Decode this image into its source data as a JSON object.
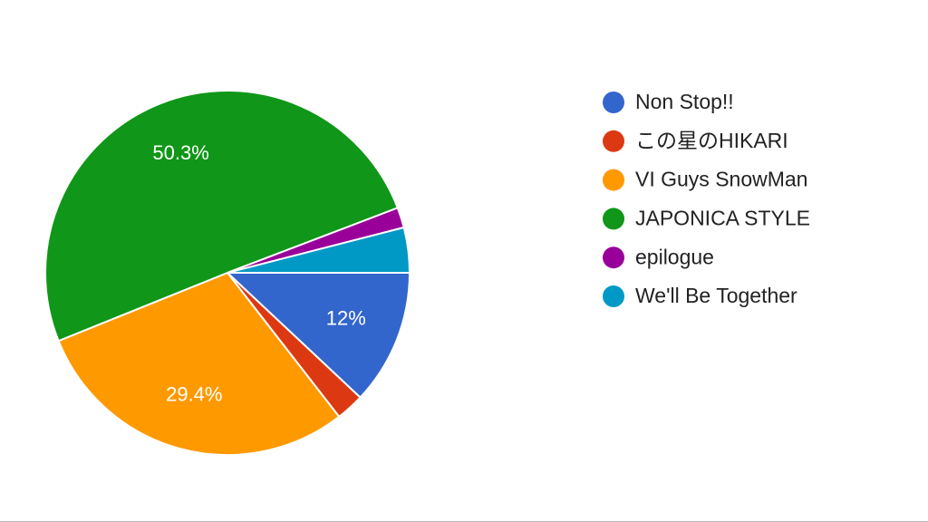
{
  "chart_data": {
    "type": "pie",
    "categories": [
      "Non Stop!!",
      "この星のHIKARI",
      "VI Guys SnowMan",
      "JAPONICA STYLE",
      "epilogue",
      "We'll Be Together"
    ],
    "values": [
      12,
      2.5,
      29.4,
      50.3,
      1.8,
      4.0
    ],
    "value_labels": [
      "12%",
      null,
      "29.4%",
      "50.3%",
      null,
      null
    ],
    "colors": [
      "#3366cc",
      "#dc3912",
      "#ff9900",
      "#109618",
      "#990099",
      "#0099c6"
    ],
    "legend": "right"
  }
}
